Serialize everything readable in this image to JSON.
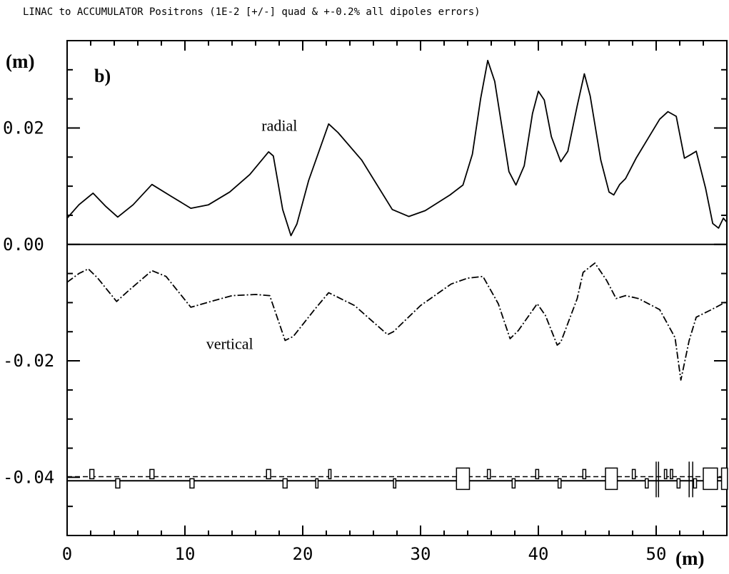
{
  "chart_data": {
    "type": "line",
    "title": "LINAC to  ACCUMULATOR  Positrons (1E-2 [+/-] quad & +-0.2% all dipoles errors)",
    "panel_label": "b)",
    "ylabel": "(m)",
    "xlabel": "(m)",
    "xlim": [
      0,
      56
    ],
    "ylim": [
      -0.05,
      0.035
    ],
    "x_ticks": [
      0,
      10,
      20,
      30,
      40,
      50
    ],
    "x_tick_labels": [
      "0",
      "10",
      "20",
      "30",
      "40",
      "50"
    ],
    "y_ticks": [
      0.02,
      0.0,
      -0.02,
      -0.04
    ],
    "y_tick_labels": [
      "0.02",
      "0.00",
      "-0.02",
      "-0.04"
    ],
    "grid": false,
    "series": [
      {
        "name": "radial",
        "style": "solid",
        "points": [
          [
            0,
            0.0045
          ],
          [
            1,
            0.0068
          ],
          [
            2.2,
            0.0088
          ],
          [
            3.3,
            0.0065
          ],
          [
            4.3,
            0.0047
          ],
          [
            5.6,
            0.0068
          ],
          [
            7.2,
            0.0103
          ],
          [
            8.8,
            0.0083
          ],
          [
            10.5,
            0.0062
          ],
          [
            12,
            0.0068
          ],
          [
            13.8,
            0.009
          ],
          [
            15.5,
            0.012
          ],
          [
            17.1,
            0.0159
          ],
          [
            17.5,
            0.0152
          ],
          [
            18.3,
            0.006
          ],
          [
            19,
            0.0015
          ],
          [
            19.5,
            0.0035
          ],
          [
            20.5,
            0.011
          ],
          [
            22.2,
            0.0207
          ],
          [
            23,
            0.0192
          ],
          [
            25,
            0.0145
          ],
          [
            27.6,
            0.006
          ],
          [
            29,
            0.0048
          ],
          [
            30.4,
            0.0058
          ],
          [
            32.5,
            0.0085
          ],
          [
            33.6,
            0.0102
          ],
          [
            34.4,
            0.0155
          ],
          [
            35.1,
            0.025
          ],
          [
            35.7,
            0.0316
          ],
          [
            36.3,
            0.028
          ],
          [
            37.5,
            0.0125
          ],
          [
            38.1,
            0.0102
          ],
          [
            38.8,
            0.0135
          ],
          [
            39.5,
            0.0225
          ],
          [
            40,
            0.0263
          ],
          [
            40.5,
            0.0248
          ],
          [
            41.1,
            0.0185
          ],
          [
            41.9,
            0.0142
          ],
          [
            42.5,
            0.016
          ],
          [
            43.3,
            0.0238
          ],
          [
            43.9,
            0.0293
          ],
          [
            44.4,
            0.0255
          ],
          [
            45.3,
            0.0145
          ],
          [
            46,
            0.009
          ],
          [
            46.4,
            0.0085
          ],
          [
            46.9,
            0.0103
          ],
          [
            47.4,
            0.0113
          ],
          [
            48.3,
            0.0148
          ],
          [
            49.4,
            0.0185
          ],
          [
            50.3,
            0.0215
          ],
          [
            51,
            0.0228
          ],
          [
            51.7,
            0.022
          ],
          [
            52.4,
            0.0148
          ],
          [
            53,
            0.0155
          ],
          [
            53.4,
            0.016
          ],
          [
            54.2,
            0.0096
          ],
          [
            54.8,
            0.0036
          ],
          [
            55.3,
            0.0028
          ],
          [
            55.7,
            0.0045
          ],
          [
            56,
            0.0038
          ]
        ]
      },
      {
        "name": "vertical",
        "style": "dashdot",
        "points": [
          [
            0,
            -0.0065
          ],
          [
            1,
            -0.005
          ],
          [
            1.8,
            -0.0042
          ],
          [
            2.6,
            -0.0058
          ],
          [
            3.8,
            -0.0088
          ],
          [
            4.2,
            -0.0098
          ],
          [
            5.3,
            -0.0078
          ],
          [
            7.2,
            -0.0045
          ],
          [
            8.4,
            -0.0055
          ],
          [
            10.5,
            -0.0108
          ],
          [
            12.2,
            -0.0098
          ],
          [
            14,
            -0.0088
          ],
          [
            16,
            -0.0086
          ],
          [
            17.2,
            -0.0088
          ],
          [
            18.5,
            -0.0165
          ],
          [
            19.2,
            -0.0158
          ],
          [
            21,
            -0.0112
          ],
          [
            22.2,
            -0.0083
          ],
          [
            24.4,
            -0.0105
          ],
          [
            27.2,
            -0.0155
          ],
          [
            27.7,
            -0.015
          ],
          [
            30,
            -0.0105
          ],
          [
            32.6,
            -0.0068
          ],
          [
            34,
            -0.0058
          ],
          [
            35.3,
            -0.0055
          ],
          [
            36.6,
            -0.0102
          ],
          [
            37.6,
            -0.0162
          ],
          [
            38.3,
            -0.0148
          ],
          [
            39.9,
            -0.0102
          ],
          [
            40.6,
            -0.0122
          ],
          [
            41.6,
            -0.0173
          ],
          [
            41.9,
            -0.0168
          ],
          [
            43.3,
            -0.0093
          ],
          [
            43.8,
            -0.0048
          ],
          [
            44.8,
            -0.0032
          ],
          [
            45.8,
            -0.0062
          ],
          [
            46.6,
            -0.0093
          ],
          [
            47.4,
            -0.0088
          ],
          [
            48.5,
            -0.0093
          ],
          [
            50.3,
            -0.0112
          ],
          [
            51.6,
            -0.016
          ],
          [
            52.1,
            -0.0233
          ],
          [
            52.8,
            -0.0165
          ],
          [
            53.4,
            -0.0125
          ],
          [
            54.6,
            -0.0113
          ],
          [
            56,
            -0.0098
          ]
        ]
      }
    ],
    "series_labels": [
      {
        "text": "radial",
        "x": 16.5,
        "y": 0.0195
      },
      {
        "text": "vertical",
        "x": 11.8,
        "y": -0.018
      }
    ],
    "lattice": {
      "baseline_upper": -0.0399,
      "baseline_lower": -0.0406,
      "elements": [
        {
          "x": 2.1,
          "width": 0.35,
          "side": "up"
        },
        {
          "x": 4.3,
          "width": 0.35,
          "side": "down"
        },
        {
          "x": 7.2,
          "width": 0.35,
          "side": "up"
        },
        {
          "x": 10.6,
          "width": 0.35,
          "side": "down"
        },
        {
          "x": 17.1,
          "width": 0.35,
          "side": "up"
        },
        {
          "x": 18.5,
          "width": 0.35,
          "side": "down"
        },
        {
          "x": 21.2,
          "width": 0.2,
          "side": "down"
        },
        {
          "x": 22.3,
          "width": 0.2,
          "side": "up"
        },
        {
          "x": 27.8,
          "width": 0.2,
          "side": "down"
        },
        {
          "x": 33.6,
          "width": 1.1,
          "side": "both"
        },
        {
          "x": 35.8,
          "width": 0.25,
          "side": "up"
        },
        {
          "x": 37.9,
          "width": 0.25,
          "side": "down"
        },
        {
          "x": 39.9,
          "width": 0.25,
          "side": "up"
        },
        {
          "x": 41.8,
          "width": 0.25,
          "side": "down"
        },
        {
          "x": 43.9,
          "width": 0.25,
          "side": "up"
        },
        {
          "x": 46.2,
          "width": 1.0,
          "side": "both"
        },
        {
          "x": 48.1,
          "width": 0.25,
          "side": "up"
        },
        {
          "x": 49.2,
          "width": 0.25,
          "side": "down"
        },
        {
          "x": 50.8,
          "width": 0.2,
          "side": "up"
        },
        {
          "x": 51.3,
          "width": 0.2,
          "side": "up"
        },
        {
          "x": 51.9,
          "width": 0.25,
          "side": "down"
        },
        {
          "x": 53.3,
          "width": 0.25,
          "side": "down"
        },
        {
          "x": 54.6,
          "width": 1.2,
          "side": "both"
        },
        {
          "x": 55.8,
          "width": 0.5,
          "side": "both"
        }
      ],
      "markers": [
        50,
        50.2,
        52.8,
        53.1
      ]
    }
  }
}
